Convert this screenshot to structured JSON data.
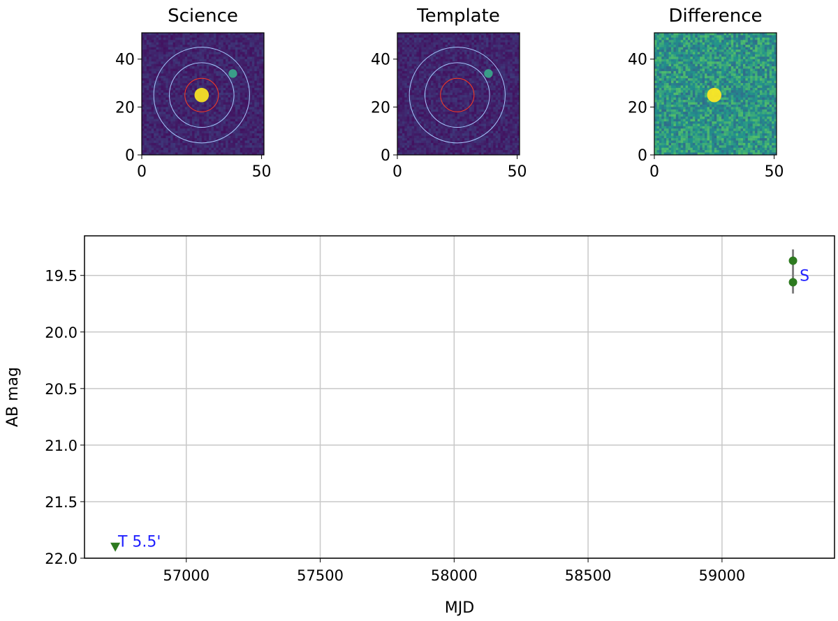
{
  "panels": [
    {
      "title": "Science",
      "xticks": [
        "0",
        "50"
      ],
      "yticks": [
        "0",
        "20",
        "40"
      ],
      "background": "#3b1e6b",
      "blobs": [
        {
          "cx": 25,
          "cy": 25,
          "r": 3.0,
          "color": "#f7e225"
        },
        {
          "cx": 38,
          "cy": 34,
          "r": 1.8,
          "color": "#3aa38a"
        }
      ],
      "circles": [
        {
          "r": 7,
          "color": "#ff3b1f"
        },
        {
          "r": 13.5,
          "color": "#a8c8ff"
        },
        {
          "r": 20,
          "color": "#a8c8ff"
        }
      ]
    },
    {
      "title": "Template",
      "xticks": [
        "0",
        "50"
      ],
      "yticks": [
        "0",
        "20",
        "40"
      ],
      "background": "#3b1e6b",
      "blobs": [
        {
          "cx": 38,
          "cy": 34,
          "r": 1.8,
          "color": "#3aa38a"
        }
      ],
      "circles": [
        {
          "r": 7,
          "color": "#ff3b1f"
        },
        {
          "r": 13.5,
          "color": "#a8c8ff"
        },
        {
          "r": 20,
          "color": "#a8c8ff"
        }
      ]
    },
    {
      "title": "Difference",
      "xticks": [
        "0",
        "50"
      ],
      "yticks": [
        "0",
        "20",
        "40"
      ],
      "background": "#2f7d85",
      "blobs": [
        {
          "cx": 25,
          "cy": 25,
          "r": 3.0,
          "color": "#fde725"
        }
      ],
      "circles": []
    }
  ],
  "colors": {
    "viridis_low": "#440154",
    "viridis_mid": "#21918c",
    "viridis_high": "#fde725",
    "point": "#2d7a1f",
    "errorbar": "#808080",
    "annotation": "#1f1fff",
    "grid": "#c8c8c8"
  },
  "chart_data": {
    "type": "scatter",
    "xlabel": "MJD",
    "ylabel": "AB mag",
    "xlim": [
      56620,
      59420
    ],
    "ylim": [
      22.0,
      19.15
    ],
    "y_inverted": true,
    "grid": true,
    "xticks": [
      57000,
      57500,
      58000,
      58500,
      59000
    ],
    "xtick_labels": [
      "57000",
      "57500",
      "58000",
      "58500",
      "59000"
    ],
    "yticks": [
      19.5,
      20.0,
      20.5,
      21.0,
      21.5,
      22.0
    ],
    "ytick_labels": [
      "19.5",
      "20.0",
      "20.5",
      "21.0",
      "21.5",
      "22.0"
    ],
    "detections": [
      {
        "x": 59265,
        "y": 19.37,
        "err": 0.1
      },
      {
        "x": 59265,
        "y": 19.56,
        "err": 0.1
      }
    ],
    "upper_limits": [
      {
        "x": 56735,
        "y": 21.9
      }
    ],
    "annotations": [
      {
        "text": "S",
        "x": 59290,
        "y": 19.5
      },
      {
        "text": "T 5.5'",
        "x": 56745,
        "y": 21.85
      }
    ]
  }
}
